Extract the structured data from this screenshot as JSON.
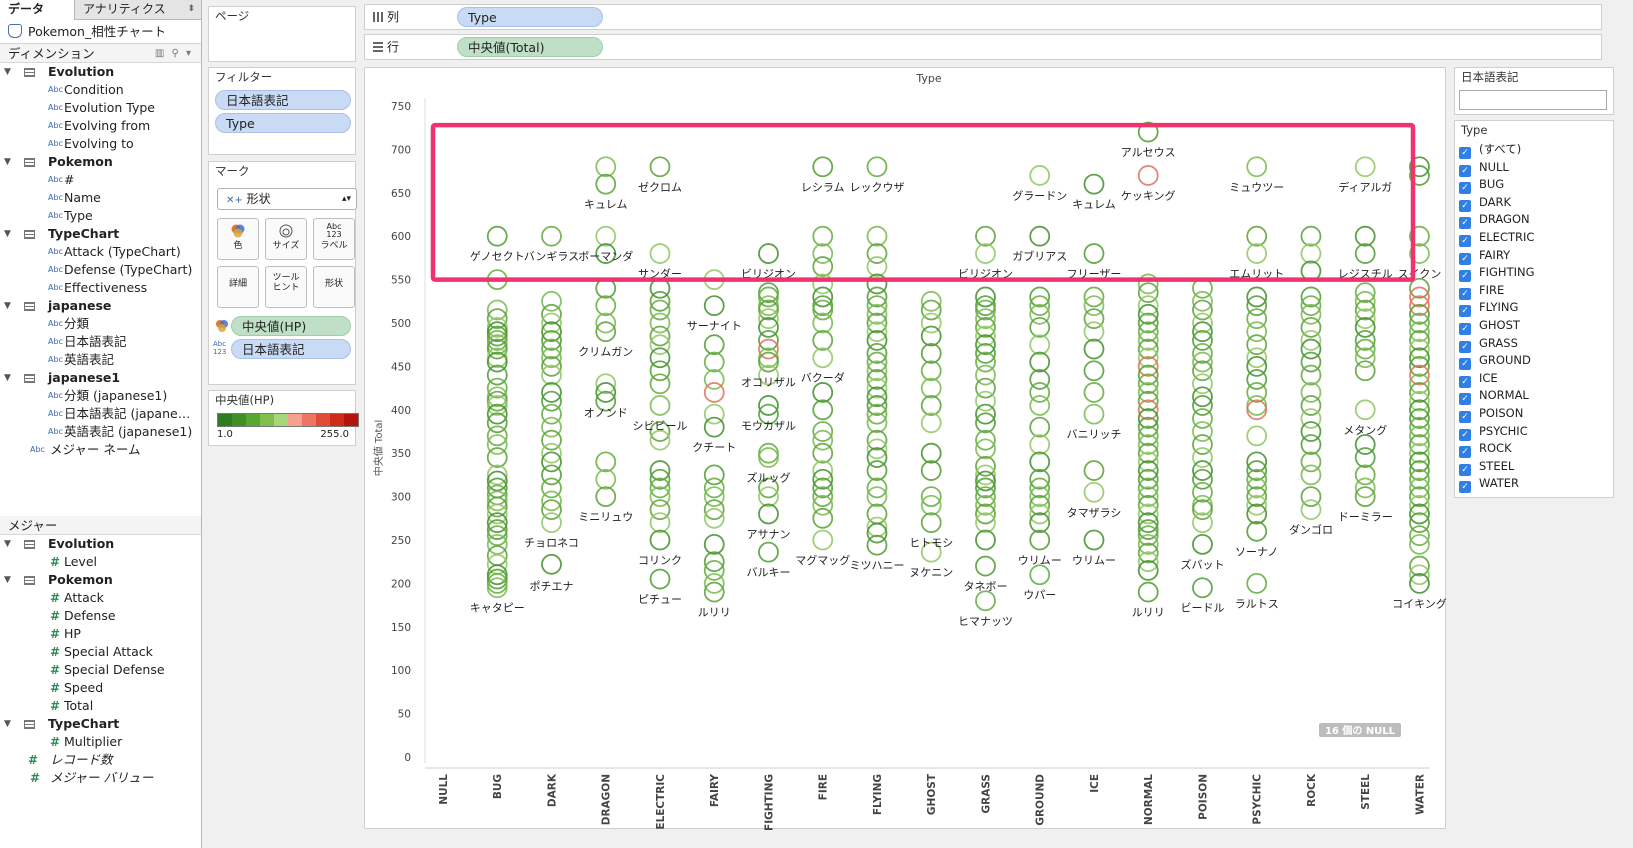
{
  "left_pane": {
    "tab_data": "データ",
    "tab_analytics": "アナリティクス",
    "tab_caret": "⬍",
    "datasource": "Pokemon_相性チャート",
    "dimensions_title": "ディメンション",
    "dimensions_tools": "▥ ⚲ ▾",
    "dimension_groups": [
      {
        "name": "Evolution",
        "fields": [
          "Condition",
          "Evolution Type",
          "Evolving from",
          "Evolving to"
        ]
      },
      {
        "name": "Pokemon",
        "fields": [
          "#",
          "Name",
          "Type"
        ]
      },
      {
        "name": "TypeChart",
        "fields": [
          "Attack (TypeChart)",
          "Defense (TypeChart)",
          "Effectiveness"
        ]
      },
      {
        "name": "japanese",
        "fields": [
          "分類",
          "日本語表記",
          "英語表記"
        ]
      },
      {
        "name": "japanese1",
        "fields": [
          "分類 (japanese1)",
          "日本語表記 (japane…",
          "英語表記 (japanese1)"
        ]
      }
    ],
    "measure_names_dim": "メジャー ネーム",
    "measures_title": "メジャー",
    "measure_groups": [
      {
        "name": "Evolution",
        "fields": [
          "Level"
        ]
      },
      {
        "name": "Pokemon",
        "fields": [
          "Attack",
          "Defense",
          "HP",
          "Special Attack",
          "Special Defense",
          "Speed",
          "Total"
        ]
      },
      {
        "name": "TypeChart",
        "fields": [
          "Multiplier"
        ]
      }
    ],
    "record_count": "レコード数",
    "measure_values": "メジャー バリュー",
    "abc_icon": "Abc",
    "hash_icon": "#"
  },
  "shelves": {
    "pages_title": "ページ",
    "filters_title": "フィルター",
    "filter_pills": [
      "日本語表記",
      "Type"
    ],
    "columns_label": "列",
    "columns_pill": "Type",
    "rows_label": "行",
    "rows_pill": "中央値(Total)"
  },
  "marks": {
    "title": "マーク",
    "mark_type": "形状",
    "mark_type_icon": "✕+",
    "buttons": [
      {
        "label": "色",
        "icon": "color-icon"
      },
      {
        "label": "サイズ",
        "icon": "size-icon"
      },
      {
        "label": "ラベル",
        "icon": "label-icon",
        "icon_text": "Abc\n123"
      },
      {
        "label": "詳細",
        "icon": "none"
      },
      {
        "label": "ツール\nヒント",
        "icon": "none"
      },
      {
        "label": "形状",
        "icon": "none"
      }
    ],
    "color_field": "中央値(HP)",
    "label_field": "日本語表記",
    "label_field_icon": "Abc\n123"
  },
  "color_legend": {
    "title": "中央値(HP)",
    "min": "1.0",
    "max": "255.0",
    "colors": [
      "#2e7d1e",
      "#3e9026",
      "#58a634",
      "#7fbe4f",
      "#a9d67c",
      "#f6a08e",
      "#ee7661",
      "#e04c36",
      "#cf2a1a",
      "#b5140c"
    ]
  },
  "chart_data": {
    "type": "scatter",
    "title": "Type",
    "ylabel": "中央値 Total",
    "ylim": [
      0,
      750
    ],
    "yticks": [
      0,
      50,
      100,
      150,
      200,
      250,
      300,
      350,
      400,
      450,
      500,
      550,
      600,
      650,
      700,
      750
    ],
    "categories": [
      "NULL",
      "BUG",
      "DARK",
      "DRAGON",
      "ELECTRIC",
      "FAIRY",
      "FIGHTING",
      "FIRE",
      "FLYING",
      "GHOST",
      "GRASS",
      "GROUND",
      "ICE",
      "NORMAL",
      "POISON",
      "PSYCHIC",
      "ROCK",
      "STEEL",
      "WATER"
    ],
    "null_badge": "16 個の NULL",
    "highlight": {
      "y_from": 550,
      "y_to": 728,
      "color": "#f0326e"
    },
    "labels": [
      {
        "x": "BUG",
        "y": 600,
        "text": "ゲノセクト"
      },
      {
        "x": "BUG",
        "y": 195,
        "text": "キャタピー"
      },
      {
        "x": "DARK",
        "y": 600,
        "text": "バンギラス"
      },
      {
        "x": "DARK",
        "y": 270,
        "text": "チョロネコ"
      },
      {
        "x": "DARK",
        "y": 220,
        "text": "ポチエナ"
      },
      {
        "x": "DRAGON",
        "y": 660,
        "text": "キュレム"
      },
      {
        "x": "DRAGON",
        "y": 600,
        "text": "ボーマンダ"
      },
      {
        "x": "DRAGON",
        "y": 490,
        "text": "クリムガン"
      },
      {
        "x": "DRAGON",
        "y": 420,
        "text": "オノンド"
      },
      {
        "x": "DRAGON",
        "y": 300,
        "text": "ミニリュウ"
      },
      {
        "x": "ELECTRIC",
        "y": 680,
        "text": "ゼクロム"
      },
      {
        "x": "ELECTRIC",
        "y": 580,
        "text": "サンダー"
      },
      {
        "x": "ELECTRIC",
        "y": 405,
        "text": "シビビール"
      },
      {
        "x": "ELECTRIC",
        "y": 250,
        "text": "コリンク"
      },
      {
        "x": "ELECTRIC",
        "y": 205,
        "text": "ピチュー"
      },
      {
        "x": "FAIRY",
        "y": 520,
        "text": "サーナイト"
      },
      {
        "x": "FAIRY",
        "y": 380,
        "text": "クチート"
      },
      {
        "x": "FAIRY",
        "y": 190,
        "text": "ルリリ"
      },
      {
        "x": "FIGHTING",
        "y": 580,
        "text": "ビリジオン"
      },
      {
        "x": "FIGHTING",
        "y": 455,
        "text": "オコリザル"
      },
      {
        "x": "FIGHTING",
        "y": 405,
        "text": "モウカザル"
      },
      {
        "x": "FIGHTING",
        "y": 345,
        "text": "ズルッグ"
      },
      {
        "x": "FIGHTING",
        "y": 280,
        "text": "アサナン"
      },
      {
        "x": "FIGHTING",
        "y": 236,
        "text": "バルキー"
      },
      {
        "x": "FIRE",
        "y": 680,
        "text": "レシラム"
      },
      {
        "x": "FIRE",
        "y": 460,
        "text": "バクーダ"
      },
      {
        "x": "FIRE",
        "y": 250,
        "text": "マグマッグ"
      },
      {
        "x": "FLYING",
        "y": 680,
        "text": "レックウザ"
      },
      {
        "x": "FLYING",
        "y": 244,
        "text": "ミツハニー"
      },
      {
        "x": "GHOST",
        "y": 270,
        "text": "ヒトモシ"
      },
      {
        "x": "GHOST",
        "y": 236,
        "text": "ヌケニン"
      },
      {
        "x": "GRASS",
        "y": 580,
        "text": "ビリジオン"
      },
      {
        "x": "GRASS",
        "y": 220,
        "text": "タネボー"
      },
      {
        "x": "GRASS",
        "y": 180,
        "text": "ヒマナッツ"
      },
      {
        "x": "GROUND",
        "y": 670,
        "text": "グラードン"
      },
      {
        "x": "GROUND",
        "y": 600,
        "text": "ガブリアス"
      },
      {
        "x": "GROUND",
        "y": 250,
        "text": "ウリムー"
      },
      {
        "x": "GROUND",
        "y": 210,
        "text": "ウパー"
      },
      {
        "x": "ICE",
        "y": 660,
        "text": "キュレム"
      },
      {
        "x": "ICE",
        "y": 580,
        "text": "フリーザー"
      },
      {
        "x": "ICE",
        "y": 395,
        "text": "バニリッチ"
      },
      {
        "x": "ICE",
        "y": 305,
        "text": "タマザラシ"
      },
      {
        "x": "ICE",
        "y": 250,
        "text": "ウリムー"
      },
      {
        "x": "NORMAL",
        "y": 720,
        "text": "アルセウス"
      },
      {
        "x": "NORMAL",
        "y": 670,
        "text": "ケッキング"
      },
      {
        "x": "NORMAL",
        "y": 190,
        "text": "ルリリ"
      },
      {
        "x": "POISON",
        "y": 245,
        "text": "ズバット"
      },
      {
        "x": "POISON",
        "y": 195,
        "text": "ビードル"
      },
      {
        "x": "PSYCHIC",
        "y": 680,
        "text": "ミュウツー"
      },
      {
        "x": "PSYCHIC",
        "y": 580,
        "text": "エムリット"
      },
      {
        "x": "PSYCHIC",
        "y": 260,
        "text": "ソーナノ"
      },
      {
        "x": "PSYCHIC",
        "y": 200,
        "text": "ラルトス"
      },
      {
        "x": "ROCK",
        "y": 285,
        "text": "ダンゴロ"
      },
      {
        "x": "STEEL",
        "y": 680,
        "text": "ディアルガ"
      },
      {
        "x": "STEEL",
        "y": 580,
        "text": "レジスチル"
      },
      {
        "x": "STEEL",
        "y": 400,
        "text": "メタング"
      },
      {
        "x": "STEEL",
        "y": 300,
        "text": "ドーミラー"
      },
      {
        "x": "WATER",
        "y": 580,
        "text": "スイクン"
      },
      {
        "x": "WATER",
        "y": 200,
        "text": "コイキング"
      }
    ],
    "points": {
      "BUG": [
        600,
        550,
        515,
        505,
        495,
        490,
        485,
        480,
        475,
        470,
        460,
        455,
        440,
        425,
        415,
        410,
        405,
        395,
        385,
        370,
        360,
        345,
        325,
        318,
        310,
        302,
        295,
        288,
        280,
        270,
        262,
        255,
        245,
        232,
        222,
        210,
        205,
        200,
        195
      ],
      "DARK": [
        600,
        525,
        510,
        500,
        490,
        480,
        470,
        460,
        450,
        440,
        420,
        410,
        395,
        380,
        365,
        350,
        340,
        325,
        310,
        295,
        285,
        270,
        222
      ],
      "DRAGON": [
        680,
        660,
        600,
        580,
        540,
        520,
        500,
        490,
        430,
        420,
        410,
        340,
        320,
        300
      ],
      "ELECTRIC": [
        680,
        580,
        540,
        525,
        515,
        500,
        485,
        475,
        460,
        445,
        430,
        405,
        375,
        365,
        330,
        320,
        310,
        300,
        285,
        270,
        250,
        205
      ],
      "FAIRY": [
        550,
        520,
        475,
        455,
        435,
        420,
        395,
        380,
        325,
        310,
        300,
        285,
        275,
        245,
        225,
        215,
        200,
        190
      ],
      "FIGHTING": [
        580,
        535,
        530,
        520,
        515,
        505,
        495,
        480,
        470,
        460,
        455,
        440,
        405,
        395,
        350,
        345,
        310,
        300,
        280,
        236
      ],
      "FIRE": [
        680,
        600,
        580,
        565,
        545,
        530,
        520,
        515,
        500,
        480,
        460,
        420,
        400,
        375,
        365,
        350,
        330,
        320,
        310,
        300,
        290,
        275,
        250
      ],
      "FLYING": [
        680,
        600,
        580,
        565,
        545,
        530,
        520,
        510,
        500,
        490,
        480,
        465,
        455,
        445,
        435,
        425,
        415,
        405,
        395,
        385,
        365,
        355,
        345,
        330,
        310,
        300,
        280,
        265,
        258,
        244
      ],
      "GHOST": [
        525,
        515,
        500,
        485,
        465,
        445,
        425,
        405,
        385,
        350,
        330,
        300,
        290,
        270,
        236
      ],
      "GRASS": [
        600,
        580,
        530,
        520,
        515,
        505,
        495,
        485,
        475,
        465,
        455,
        440,
        425,
        410,
        395,
        385,
        365,
        355,
        335,
        325,
        318,
        310,
        300,
        290,
        280,
        270,
        250,
        220,
        180
      ],
      "GROUND": [
        670,
        600,
        530,
        520,
        510,
        495,
        475,
        455,
        435,
        420,
        405,
        380,
        360,
        340,
        320,
        310,
        300,
        290,
        280,
        270,
        250,
        210
      ],
      "ICE": [
        660,
        580,
        530,
        520,
        505,
        490,
        470,
        445,
        420,
        395,
        330,
        305,
        250
      ],
      "NORMAL": [
        720,
        670,
        545,
        535,
        520,
        510,
        500,
        490,
        480,
        470,
        460,
        450,
        440,
        430,
        420,
        410,
        400,
        390,
        380,
        370,
        360,
        350,
        340,
        330,
        320,
        310,
        300,
        290,
        280,
        270,
        262,
        255,
        245,
        235,
        225,
        215,
        190
      ],
      "POISON": [
        540,
        525,
        515,
        500,
        490,
        480,
        465,
        455,
        445,
        430,
        415,
        405,
        390,
        375,
        360,
        345,
        330,
        320,
        305,
        290,
        285,
        270,
        245,
        195
      ],
      "PSYCHIC": [
        680,
        600,
        580,
        530,
        520,
        505,
        490,
        475,
        460,
        450,
        435,
        420,
        405,
        400,
        370,
        340,
        330,
        320,
        310,
        300,
        290,
        280,
        260,
        200
      ],
      "ROCK": [
        600,
        580,
        560,
        530,
        520,
        510,
        495,
        480,
        470,
        455,
        440,
        420,
        405,
        390,
        375,
        360,
        340,
        325,
        300,
        285
      ],
      "STEEL": [
        680,
        600,
        580,
        535,
        525,
        515,
        505,
        495,
        480,
        470,
        460,
        445,
        400,
        360,
        345,
        325,
        310,
        300
      ],
      "WATER": [
        680,
        670,
        600,
        580,
        540,
        530,
        520,
        510,
        500,
        490,
        480,
        470,
        460,
        450,
        440,
        430,
        420,
        410,
        400,
        390,
        380,
        370,
        360,
        350,
        340,
        330,
        320,
        310,
        300,
        290,
        280,
        270,
        255,
        245,
        220,
        210,
        200
      ]
    },
    "red_points": {
      "FAIRY": [
        420
      ],
      "FIGHTING": [
        470
      ],
      "NORMAL": [
        670,
        540,
        450,
        400
      ],
      "PSYCHIC": [
        400
      ],
      "WATER": [
        530,
        520,
        440
      ]
    }
  },
  "right_filters": {
    "japanese_title": "日本語表記",
    "type_title": "Type",
    "type_items": [
      "(すべて)",
      "NULL",
      "BUG",
      "DARK",
      "DRAGON",
      "ELECTRIC",
      "FAIRY",
      "FIGHTING",
      "FIRE",
      "FLYING",
      "GHOST",
      "GRASS",
      "GROUND",
      "ICE",
      "NORMAL",
      "POISON",
      "PSYCHIC",
      "ROCK",
      "STEEL",
      "WATER"
    ],
    "check_glyph": "✓"
  }
}
